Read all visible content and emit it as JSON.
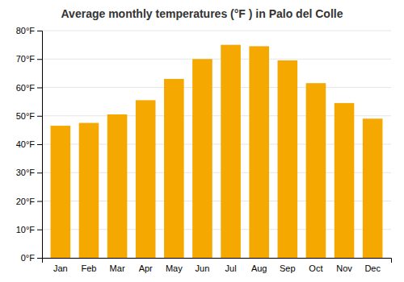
{
  "chart_data": {
    "type": "bar",
    "title": "Average monthly temperatures (°F ) in Palo del Colle",
    "categories": [
      "Jan",
      "Feb",
      "Mar",
      "Apr",
      "May",
      "Jun",
      "Jul",
      "Aug",
      "Sep",
      "Oct",
      "Nov",
      "Dec"
    ],
    "values": [
      46.5,
      47.5,
      50.5,
      55.5,
      63.0,
      70.0,
      75.0,
      74.5,
      69.5,
      61.5,
      54.5,
      49.0
    ],
    "color": "#F5A800",
    "ylim": [
      0,
      80
    ],
    "yticks": [
      {
        "value": 0,
        "label": "0°F"
      },
      {
        "value": 10,
        "label": "10°F"
      },
      {
        "value": 20,
        "label": "20°F"
      },
      {
        "value": 30,
        "label": "30°F"
      },
      {
        "value": 40,
        "label": "40°F"
      },
      {
        "value": 50,
        "label": "50°F"
      },
      {
        "value": 60,
        "label": "60°F"
      },
      {
        "value": 70,
        "label": "70°F"
      },
      {
        "value": 80,
        "label": "80°F"
      }
    ],
    "grid": true
  }
}
